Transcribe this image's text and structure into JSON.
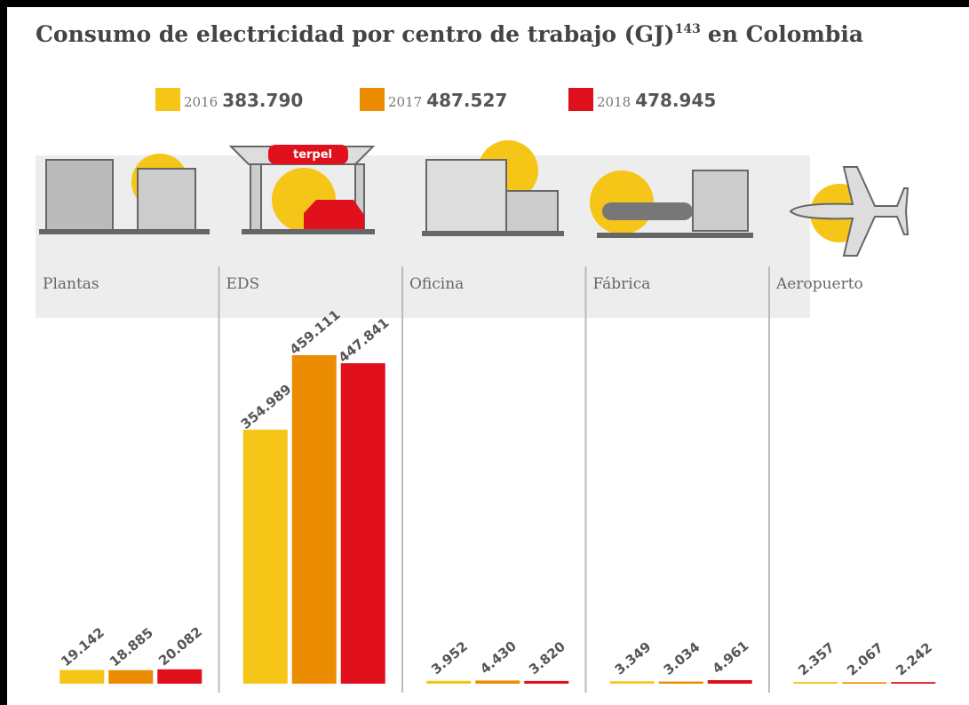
{
  "chart_data": {
    "type": "bar",
    "title": "Consumo de electricidad por centro de trabajo (GJ)",
    "title_note": "143",
    "title_tail": "en Colombia",
    "icon_label": "terpel",
    "categories": [
      "Plantas",
      "EDS",
      "Oficina",
      "Fábrica",
      "Aeropuerto"
    ],
    "series": [
      {
        "name": "2016",
        "total": "383.790",
        "color": "#f5c518",
        "values": [
          19142,
          354989,
          3952,
          3349,
          2357
        ],
        "value_labels": [
          "19.142",
          "354.989",
          "3.952",
          "3.349",
          "2.357"
        ]
      },
      {
        "name": "2017",
        "total": "487.527",
        "color": "#ec8c00",
        "values": [
          18885,
          459111,
          4430,
          3034,
          2067
        ],
        "value_labels": [
          "18.885",
          "459.111",
          "4.430",
          "3.034",
          "2.067"
        ]
      },
      {
        "name": "2018",
        "total": "478.945",
        "color": "#e0101c",
        "values": [
          20082,
          447841,
          3820,
          4961,
          2242
        ],
        "value_labels": [
          "20.082",
          "447.841",
          "3.820",
          "4.961",
          "2.242"
        ]
      }
    ]
  }
}
